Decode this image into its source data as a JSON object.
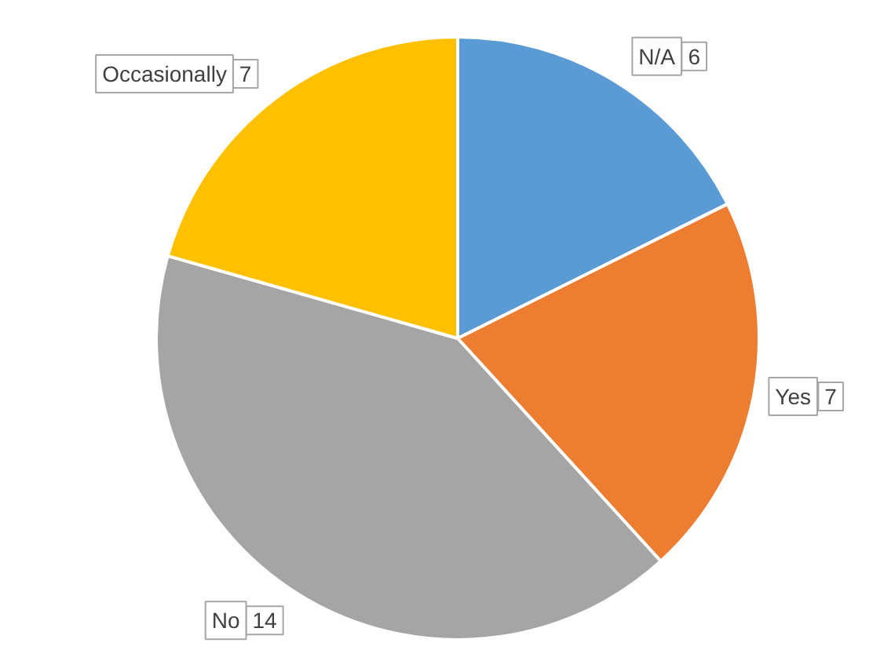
{
  "chart_data": {
    "type": "pie",
    "categories": [
      "N/A",
      "Yes",
      "No",
      "Occasionally"
    ],
    "values": [
      6,
      7,
      14,
      7
    ],
    "colors": [
      "#5b9bd5",
      "#ed7d31",
      "#a5a5a5",
      "#ffc000"
    ],
    "data_labels": true
  }
}
